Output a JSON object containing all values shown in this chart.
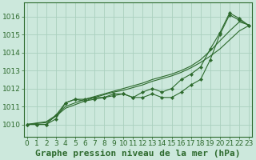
{
  "title": "Graphe pression niveau de la mer (hPa)",
  "background_color": "#cce8dc",
  "grid_color": "#aacfbe",
  "line_color": "#2d6a2d",
  "marker_color": "#2d6a2d",
  "xlim": [
    -0.3,
    23.3
  ],
  "ylim": [
    1009.3,
    1016.8
  ],
  "yticks": [
    1010,
    1011,
    1012,
    1013,
    1014,
    1015,
    1016
  ],
  "xticks": [
    0,
    1,
    2,
    3,
    4,
    5,
    6,
    7,
    8,
    9,
    10,
    11,
    12,
    13,
    14,
    15,
    16,
    17,
    18,
    19,
    20,
    21,
    22,
    23
  ],
  "series_with_markers": [
    [
      1010.0,
      1010.0,
      1010.0,
      1010.3,
      1011.2,
      1011.4,
      1011.4,
      1011.5,
      1011.5,
      1011.7,
      1011.7,
      1011.5,
      1011.5,
      1011.7,
      1011.5,
      1011.5,
      1011.8,
      1012.2,
      1012.5,
      1013.6,
      1015.0,
      1016.1,
      1015.8,
      1015.5
    ],
    [
      1010.0,
      1010.0,
      1010.0,
      1010.5,
      1011.2,
      1011.4,
      1011.3,
      1011.4,
      1011.5,
      1011.6,
      1011.7,
      1011.5,
      1011.8,
      1012.0,
      1011.8,
      1012.0,
      1012.5,
      1012.8,
      1013.2,
      1014.2,
      1015.1,
      1016.2,
      1015.9,
      1015.5
    ]
  ],
  "series_lines": [
    [
      1010.0,
      1010.05,
      1010.1,
      1010.45,
      1010.9,
      1011.1,
      1011.3,
      1011.5,
      1011.65,
      1011.8,
      1011.9,
      1012.05,
      1012.2,
      1012.4,
      1012.55,
      1012.7,
      1012.9,
      1013.15,
      1013.45,
      1013.8,
      1014.2,
      1014.7,
      1015.2,
      1015.5
    ],
    [
      1010.0,
      1010.08,
      1010.15,
      1010.5,
      1011.0,
      1011.2,
      1011.4,
      1011.55,
      1011.7,
      1011.85,
      1012.0,
      1012.15,
      1012.3,
      1012.5,
      1012.65,
      1012.8,
      1013.0,
      1013.25,
      1013.6,
      1014.1,
      1014.65,
      1015.2,
      1015.7,
      1015.55
    ]
  ],
  "title_fontsize": 8,
  "tick_fontsize": 6.5
}
